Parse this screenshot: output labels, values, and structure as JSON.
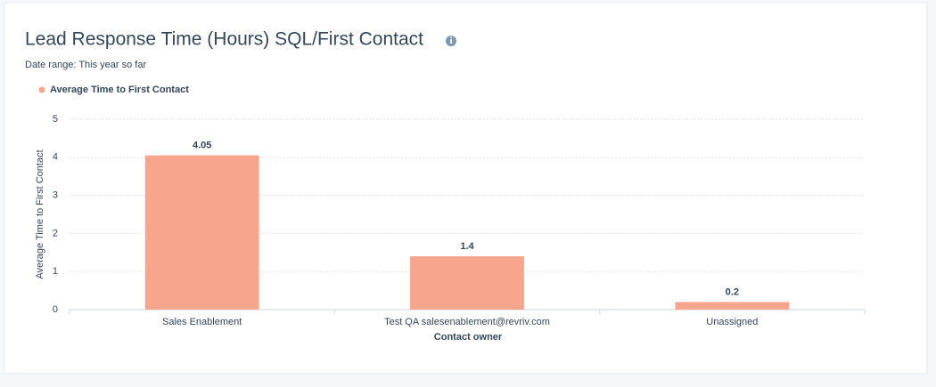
{
  "chart_data": {
    "type": "bar",
    "title": "Lead Response Time (Hours) SQL/First Contact",
    "subtitle": "Date range: This year so far",
    "x_label": "Contact owner",
    "y_label": "Average Time to First Contact",
    "categories": [
      "Sales Enablement",
      "Test QA salesenablement@revriv.com",
      "Unassigned"
    ],
    "series": [
      {
        "name": "Average Time to First Contact",
        "color": "#f8a58e",
        "values": [
          4.05,
          1.4,
          0.2
        ]
      }
    ],
    "ylim": [
      0,
      5
    ],
    "yticks": [
      0,
      1,
      2,
      3,
      4,
      5
    ],
    "grid": true
  }
}
